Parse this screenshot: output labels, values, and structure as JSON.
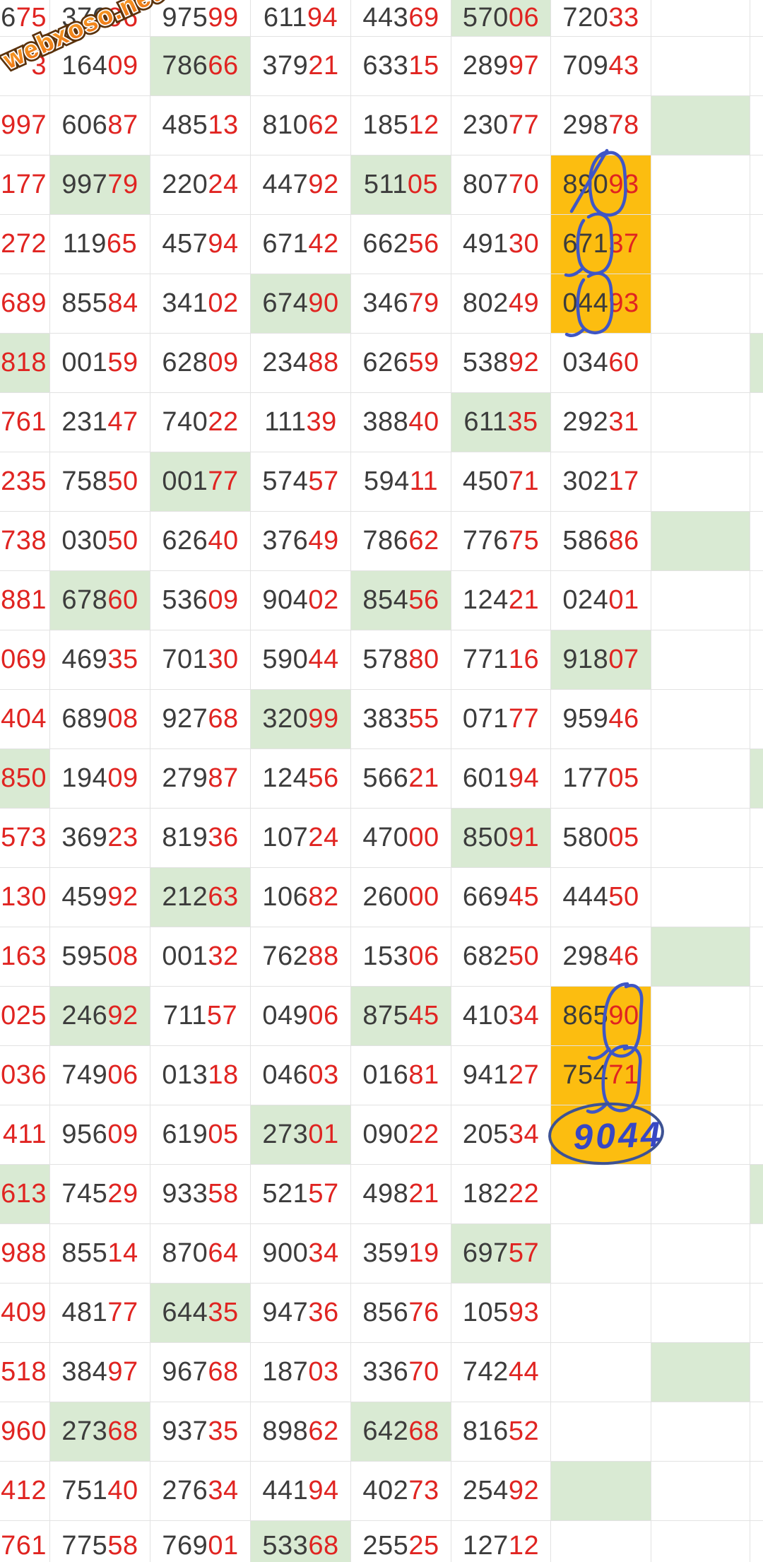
{
  "watermark": {
    "text": "webxoso.net"
  },
  "colors": {
    "digit_dark": "#3c3c3c",
    "digit_red": "#e02421",
    "highlight_green": "#d9ead3",
    "highlight_orange": "#fcbd10",
    "ink_blue": "#3f56c5",
    "grid_line": "#e2e2e2"
  },
  "annotations": {
    "handwritten_number": "9044",
    "circled_numbers": [
      "89093",
      "67137",
      "04493",
      "86590",
      "75471",
      "9044"
    ]
  },
  "table": {
    "rows": [
      {
        "left": {
          "t": "675",
          "dark": 1
        },
        "cells": [
          {
            "t": "37696"
          },
          {
            "t": "97599"
          },
          {
            "t": "61194"
          },
          {
            "t": "44369"
          },
          {
            "t": "57006",
            "bg": "g"
          },
          {
            "t": "72033"
          }
        ],
        "spacer": null,
        "edge": null
      },
      {
        "left": {
          "t": "3",
          "dark": 0
        },
        "cells": [
          {
            "t": "16409"
          },
          {
            "t": "78666",
            "bg": "g"
          },
          {
            "t": "37921"
          },
          {
            "t": "63315"
          },
          {
            "t": "28997"
          },
          {
            "t": "70943"
          }
        ],
        "spacer": null,
        "edge": null
      },
      {
        "left": {
          "t": "997",
          "dark": 0
        },
        "cells": [
          {
            "t": "60687"
          },
          {
            "t": "48513"
          },
          {
            "t": "81062"
          },
          {
            "t": "18512"
          },
          {
            "t": "23077"
          },
          {
            "t": "29878"
          }
        ],
        "spacer": "g",
        "edge": null
      },
      {
        "left": {
          "t": "177",
          "dark": 0
        },
        "cells": [
          {
            "t": "99779",
            "bg": "g"
          },
          {
            "t": "22024"
          },
          {
            "t": "44792"
          },
          {
            "t": "51105",
            "bg": "g"
          },
          {
            "t": "80770"
          },
          {
            "t": "89093",
            "bg": "o"
          }
        ],
        "spacer": null,
        "edge": null
      },
      {
        "left": {
          "t": "272",
          "dark": 0
        },
        "cells": [
          {
            "t": "11965"
          },
          {
            "t": "45794"
          },
          {
            "t": "67142"
          },
          {
            "t": "66256"
          },
          {
            "t": "49130"
          },
          {
            "t": "67137",
            "bg": "o"
          }
        ],
        "spacer": null,
        "edge": null
      },
      {
        "left": {
          "t": "689",
          "dark": 0
        },
        "cells": [
          {
            "t": "85584"
          },
          {
            "t": "34102"
          },
          {
            "t": "67490",
            "bg": "g"
          },
          {
            "t": "34679"
          },
          {
            "t": "80249"
          },
          {
            "t": "04493",
            "bg": "o"
          }
        ],
        "spacer": null,
        "edge": null
      },
      {
        "left": {
          "t": "818",
          "dark": 0,
          "bg": "g"
        },
        "cells": [
          {
            "t": "00159"
          },
          {
            "t": "62809"
          },
          {
            "t": "23488"
          },
          {
            "t": "62659"
          },
          {
            "t": "53892"
          },
          {
            "t": "03460"
          }
        ],
        "spacer": null,
        "edge": "g"
      },
      {
        "left": {
          "t": "761",
          "dark": 0
        },
        "cells": [
          {
            "t": "23147"
          },
          {
            "t": "74022"
          },
          {
            "t": "11139"
          },
          {
            "t": "38840"
          },
          {
            "t": "61135",
            "bg": "g"
          },
          {
            "t": "29231"
          }
        ],
        "spacer": null,
        "edge": null
      },
      {
        "left": {
          "t": "235",
          "dark": 0
        },
        "cells": [
          {
            "t": "75850"
          },
          {
            "t": "00177",
            "bg": "g"
          },
          {
            "t": "57457"
          },
          {
            "t": "59411"
          },
          {
            "t": "45071"
          },
          {
            "t": "30217"
          }
        ],
        "spacer": null,
        "edge": null
      },
      {
        "left": {
          "t": "738",
          "dark": 0
        },
        "cells": [
          {
            "t": "03050"
          },
          {
            "t": "62640"
          },
          {
            "t": "37649"
          },
          {
            "t": "78662"
          },
          {
            "t": "77675"
          },
          {
            "t": "58686"
          }
        ],
        "spacer": "g",
        "edge": null
      },
      {
        "left": {
          "t": "881",
          "dark": 0
        },
        "cells": [
          {
            "t": "67860",
            "bg": "g"
          },
          {
            "t": "53609"
          },
          {
            "t": "90402"
          },
          {
            "t": "85456",
            "bg": "g"
          },
          {
            "t": "12421"
          },
          {
            "t": "02401"
          }
        ],
        "spacer": null,
        "edge": null
      },
      {
        "left": {
          "t": "069",
          "dark": 0
        },
        "cells": [
          {
            "t": "46935"
          },
          {
            "t": "70130"
          },
          {
            "t": "59044"
          },
          {
            "t": "57880"
          },
          {
            "t": "77116"
          },
          {
            "t": "91807",
            "bg": "g"
          }
        ],
        "spacer": null,
        "edge": null
      },
      {
        "left": {
          "t": "404",
          "dark": 0
        },
        "cells": [
          {
            "t": "68908"
          },
          {
            "t": "92768"
          },
          {
            "t": "32099",
            "bg": "g"
          },
          {
            "t": "38355"
          },
          {
            "t": "07177"
          },
          {
            "t": "95946"
          }
        ],
        "spacer": null,
        "edge": null
      },
      {
        "left": {
          "t": "850",
          "dark": 0,
          "bg": "g"
        },
        "cells": [
          {
            "t": "19409"
          },
          {
            "t": "27987"
          },
          {
            "t": "12456"
          },
          {
            "t": "56621"
          },
          {
            "t": "60194"
          },
          {
            "t": "17705"
          }
        ],
        "spacer": null,
        "edge": "g"
      },
      {
        "left": {
          "t": "573",
          "dark": 0
        },
        "cells": [
          {
            "t": "36923"
          },
          {
            "t": "81936"
          },
          {
            "t": "10724"
          },
          {
            "t": "47000"
          },
          {
            "t": "85091",
            "bg": "g"
          },
          {
            "t": "58005"
          }
        ],
        "spacer": null,
        "edge": null
      },
      {
        "left": {
          "t": "130",
          "dark": 0
        },
        "cells": [
          {
            "t": "45992"
          },
          {
            "t": "21263",
            "bg": "g"
          },
          {
            "t": "10682"
          },
          {
            "t": "26000"
          },
          {
            "t": "66945"
          },
          {
            "t": "44450"
          }
        ],
        "spacer": null,
        "edge": null
      },
      {
        "left": {
          "t": "163",
          "dark": 0
        },
        "cells": [
          {
            "t": "59508"
          },
          {
            "t": "00132"
          },
          {
            "t": "76288"
          },
          {
            "t": "15306"
          },
          {
            "t": "68250"
          },
          {
            "t": "29846"
          }
        ],
        "spacer": "g",
        "edge": null
      },
      {
        "left": {
          "t": "025",
          "dark": 0
        },
        "cells": [
          {
            "t": "24692",
            "bg": "g"
          },
          {
            "t": "71157"
          },
          {
            "t": "04906"
          },
          {
            "t": "87545",
            "bg": "g"
          },
          {
            "t": "41034"
          },
          {
            "t": "86590",
            "bg": "o"
          }
        ],
        "spacer": null,
        "edge": null
      },
      {
        "left": {
          "t": "036",
          "dark": 0
        },
        "cells": [
          {
            "t": "74906"
          },
          {
            "t": "01318"
          },
          {
            "t": "04603"
          },
          {
            "t": "01681"
          },
          {
            "t": "94127"
          },
          {
            "t": "75471",
            "bg": "o"
          }
        ],
        "spacer": null,
        "edge": null
      },
      {
        "left": {
          "t": "411",
          "dark": 0
        },
        "cells": [
          {
            "t": "95609"
          },
          {
            "t": "61905"
          },
          {
            "t": "27301",
            "bg": "g"
          },
          {
            "t": "09022"
          },
          {
            "t": "20534"
          },
          {
            "t": "",
            "bg": "o"
          }
        ],
        "spacer": null,
        "edge": null
      },
      {
        "left": {
          "t": "613",
          "dark": 0,
          "bg": "g"
        },
        "cells": [
          {
            "t": "74529"
          },
          {
            "t": "93358"
          },
          {
            "t": "52157"
          },
          {
            "t": "49821"
          },
          {
            "t": "18222"
          },
          {
            "t": ""
          }
        ],
        "spacer": null,
        "edge": "g"
      },
      {
        "left": {
          "t": "988",
          "dark": 0
        },
        "cells": [
          {
            "t": "85514"
          },
          {
            "t": "87064"
          },
          {
            "t": "90034"
          },
          {
            "t": "35919"
          },
          {
            "t": "69757",
            "bg": "g"
          },
          {
            "t": ""
          }
        ],
        "spacer": null,
        "edge": null
      },
      {
        "left": {
          "t": "409",
          "dark": 0
        },
        "cells": [
          {
            "t": "48177"
          },
          {
            "t": "64435",
            "bg": "g"
          },
          {
            "t": "94736"
          },
          {
            "t": "85676"
          },
          {
            "t": "10593"
          },
          {
            "t": ""
          }
        ],
        "spacer": null,
        "edge": null
      },
      {
        "left": {
          "t": "518",
          "dark": 0
        },
        "cells": [
          {
            "t": "38497"
          },
          {
            "t": "96768"
          },
          {
            "t": "18703"
          },
          {
            "t": "33670"
          },
          {
            "t": "74244"
          },
          {
            "t": ""
          }
        ],
        "spacer": "g",
        "edge": null
      },
      {
        "left": {
          "t": "960",
          "dark": 0
        },
        "cells": [
          {
            "t": "27368",
            "bg": "g"
          },
          {
            "t": "93735"
          },
          {
            "t": "89862"
          },
          {
            "t": "64268",
            "bg": "g"
          },
          {
            "t": "81652"
          },
          {
            "t": ""
          }
        ],
        "spacer": null,
        "edge": null
      },
      {
        "left": {
          "t": "412",
          "dark": 0
        },
        "cells": [
          {
            "t": "75140"
          },
          {
            "t": "27634"
          },
          {
            "t": "44194"
          },
          {
            "t": "40273"
          },
          {
            "t": "25492"
          },
          {
            "t": "",
            "bg": "g"
          }
        ],
        "spacer": null,
        "edge": null
      },
      {
        "left": {
          "t": "761",
          "dark": 0
        },
        "cells": [
          {
            "t": "77558"
          },
          {
            "t": "76901"
          },
          {
            "t": "53368",
            "bg": "g"
          },
          {
            "t": "25525"
          },
          {
            "t": "12712"
          },
          {
            "t": ""
          }
        ],
        "spacer": null,
        "edge": null
      }
    ]
  }
}
